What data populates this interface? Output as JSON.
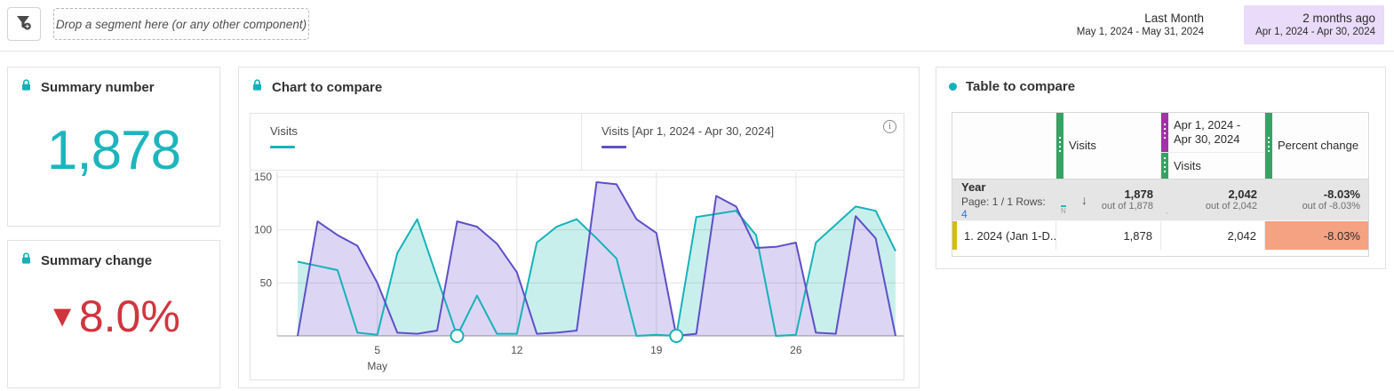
{
  "topbar": {
    "dropzone_text": "Drop a segment here (or any other component)",
    "filter_icon": "segment-funnel-add-icon",
    "range_primary": {
      "label": "Last Month",
      "dates": "May 1, 2024 - May 31, 2024"
    },
    "range_comparison": {
      "label": "2 months ago",
      "dates": "Apr 1, 2024 - Apr 30, 2024",
      "highlight_bg": "#e9dbf9"
    }
  },
  "summary_number": {
    "title": "Summary number",
    "value": "1,878",
    "value_color": "#1db5bd",
    "lock_icon": "lock-icon"
  },
  "summary_change": {
    "title": "Summary change",
    "value": "8.0%",
    "direction_glyph": "▼",
    "value_color": "#d0353e",
    "lock_icon": "lock-icon"
  },
  "chart_panel": {
    "title": "Chart to compare",
    "lock_icon": "lock-icon",
    "info_icon_glyph": "i",
    "legend": [
      {
        "label": "Visits",
        "color": "#17b2b9"
      },
      {
        "label": "Visits [Apr 1, 2024 - Apr 30, 2024]",
        "color": "#5d50c8"
      }
    ]
  },
  "chart_data": {
    "type": "area",
    "title": "Chart to compare",
    "x": [
      1,
      2,
      3,
      4,
      5,
      6,
      7,
      8,
      9,
      10,
      11,
      12,
      13,
      14,
      15,
      16,
      17,
      18,
      19,
      20,
      21,
      22,
      23,
      24,
      25,
      26,
      27,
      28,
      29,
      30,
      31
    ],
    "x_ticks": [
      5,
      12,
      19,
      26
    ],
    "x_month_label": "May",
    "y_ticks": [
      50,
      100,
      150
    ],
    "ylim": [
      0,
      157
    ],
    "grid": true,
    "legend_position": "top",
    "series": [
      {
        "name": "Visits",
        "color": "#17b2b9",
        "fill": "#c9efec",
        "values": [
          70,
          66,
          62,
          3,
          1,
          78,
          110,
          55,
          0,
          38,
          2,
          2,
          88,
          103,
          110,
          92,
          73,
          0,
          1,
          0,
          112,
          115,
          118,
          95,
          0,
          1,
          88,
          105,
          122,
          118,
          80
        ]
      },
      {
        "name": "Visits [Apr 1, 2024 - Apr 30, 2024]",
        "color": "#5d50c8",
        "fill": "#dcd6f4",
        "values": [
          0,
          108,
          95,
          85,
          50,
          3,
          2,
          5,
          108,
          103,
          87,
          60,
          2,
          3,
          5,
          145,
          143,
          110,
          97,
          0,
          2,
          132,
          122,
          83,
          84,
          88,
          3,
          2,
          113,
          92,
          0
        ]
      }
    ],
    "markers": [
      {
        "series": 0,
        "day": 9,
        "value": 0
      },
      {
        "series": 0,
        "day": 20,
        "value": 0
      }
    ]
  },
  "table_panel": {
    "title": "Table to compare",
    "bullet_color": "#14b1ba",
    "columns": {
      "col2": {
        "label": "Visits",
        "bar_color": "#36a364"
      },
      "col3_top": {
        "label": "Apr 1, 2024 - Apr 30, 2024",
        "bar_color": "#a232a8"
      },
      "col3_bottom": {
        "label": "Visits",
        "bar_color": "#36a364"
      },
      "col4": {
        "label": "Percent change",
        "bar_color": "#36a364"
      }
    },
    "totals_row": {
      "dimension": "Year",
      "page_text": "Page: 1 / 1 Rows:",
      "rows_count": "4",
      "truncated_glyph_1": "N",
      "truncated_tick_color": "#2bb3bd",
      "truncated_glyph_2": ",",
      "sort_icon_glyph": "↓",
      "cells": [
        {
          "value": "1,878",
          "sub": "out of 1,878"
        },
        {
          "value": "2,042",
          "sub": "out of 2,042"
        },
        {
          "value": "-8.03%",
          "sub": "out of -8.03%"
        }
      ]
    },
    "rows": [
      {
        "index_label": "1.",
        "name": "2024 (Jan 1-D...",
        "row_bar_color": "#d7bc0c",
        "visits": "1,878",
        "visits_compare": "2,042",
        "percent_change": "-8.03%",
        "percent_change_bg": "#f5a282"
      }
    ]
  }
}
